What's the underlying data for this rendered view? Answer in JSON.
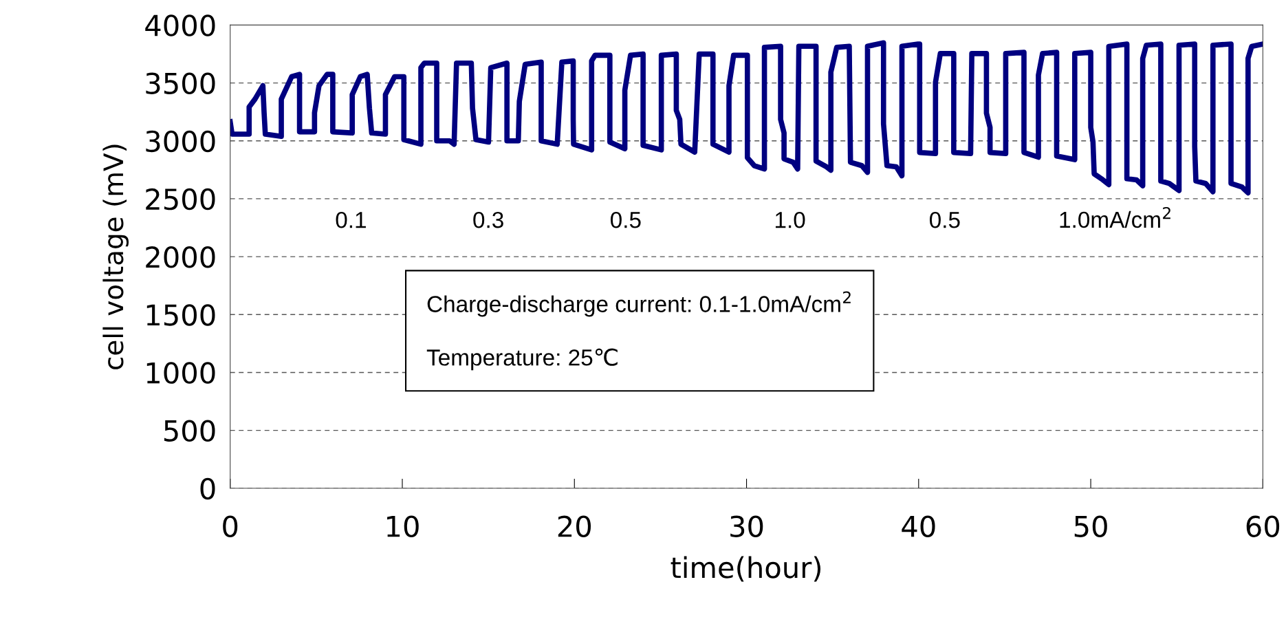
{
  "chart_data": {
    "type": "line",
    "xlabel": "time(hour)",
    "ylabel": "cell voltage (mV)",
    "xlim": [
      0,
      60
    ],
    "xticks": [
      0,
      10,
      20,
      30,
      40,
      50,
      60
    ],
    "ylim": [
      0,
      4000
    ],
    "yticks": [
      0,
      500,
      1000,
      1500,
      2000,
      2500,
      3000,
      3500,
      4000
    ],
    "grid": "y",
    "line_style": "solid",
    "marker": "none",
    "series": [
      {
        "color": "#000080",
        "x": [
          0,
          0.11,
          1.1,
          1.1,
          1.44,
          1.9,
          1.97,
          2.04,
          2.97,
          2.97,
          3.57,
          4.03,
          4.03,
          4.9,
          4.9,
          5.16,
          5.63,
          5.96,
          5.96,
          7.09,
          7.09,
          7.56,
          7.96,
          8.09,
          8.22,
          9.02,
          9.02,
          9.55,
          10.09,
          10.09,
          11.08,
          11.08,
          11.28,
          12.0,
          12.0,
          12.75,
          13.01,
          13.15,
          14.01,
          14.08,
          14.28,
          15.01,
          15.14,
          16.08,
          16.08,
          16.74,
          16.8,
          17.14,
          18.07,
          18.07,
          19.0,
          19.27,
          19.93,
          19.93,
          19.95,
          21.0,
          21.0,
          21.2,
          22.06,
          22.06,
          22.93,
          22.93,
          23.26,
          23.99,
          23.99,
          25.05,
          25.05,
          25.92,
          25.92,
          26.12,
          26.19,
          26.99,
          27.25,
          28.05,
          28.05,
          28.98,
          28.98,
          29.25,
          30.05,
          30.05,
          30.45,
          31.04,
          31.04,
          31.98,
          31.98,
          32.18,
          32.18,
          32.71,
          32.97,
          33.04,
          34.04,
          34.04,
          34.64,
          34.9,
          34.9,
          35.24,
          35.97,
          36.04,
          36.7,
          37.03,
          37.03,
          37.96,
          37.96,
          38.16,
          38.7,
          39.03,
          39.03,
          39.96,
          40.06,
          40.06,
          40.98,
          40.98,
          41.26,
          42.04,
          42.04,
          43.02,
          43.09,
          43.94,
          43.94,
          44.15,
          44.15,
          45.06,
          45.06,
          46.12,
          46.12,
          46.96,
          46.96,
          47.2,
          48.02,
          48.02,
          49.07,
          49.07,
          50.0,
          50.0,
          50.13,
          50.2,
          50.62,
          51.05,
          51.05,
          52.1,
          52.1,
          52.66,
          53.02,
          53.02,
          53.23,
          54.07,
          54.07,
          54.56,
          55.13,
          55.13,
          56.04,
          56.04,
          56.11,
          56.68,
          57.1,
          57.1,
          58.15,
          58.15,
          58.79,
          59.14,
          59.14,
          59.35,
          60.0
        ],
        "values": [
          3165,
          3058,
          3058,
          3292,
          3360,
          3476,
          3243,
          3058,
          3039,
          3360,
          3554,
          3574,
          3078,
          3078,
          3243,
          3476,
          3574,
          3574,
          3078,
          3068,
          3399,
          3554,
          3574,
          3282,
          3068,
          3058,
          3399,
          3554,
          3554,
          3010,
          2971,
          3632,
          3671,
          3671,
          3000,
          3000,
          2971,
          3671,
          3671,
          3282,
          3010,
          2990,
          3632,
          3671,
          3000,
          3000,
          3341,
          3661,
          3680,
          3000,
          2971,
          3680,
          3690,
          3185,
          2971,
          2922,
          3690,
          3739,
          3739,
          2990,
          2932,
          3438,
          3739,
          3749,
          2961,
          2922,
          3739,
          3749,
          3263,
          3185,
          2971,
          2903,
          3749,
          3749,
          2971,
          2903,
          3476,
          3739,
          3739,
          2854,
          2786,
          2757,
          3807,
          3817,
          3185,
          3068,
          2844,
          2815,
          2757,
          3817,
          3817,
          2825,
          2776,
          2747,
          3593,
          3807,
          3817,
          2815,
          2786,
          2728,
          3817,
          3846,
          3146,
          2786,
          2776,
          2698,
          3817,
          3836,
          3836,
          2900,
          2890,
          3506,
          3754,
          3754,
          2900,
          2890,
          3754,
          3754,
          3239,
          3116,
          2900,
          2890,
          3754,
          3764,
          2900,
          2859,
          3568,
          3754,
          3764,
          2869,
          2838,
          3754,
          3764,
          3116,
          2992,
          2715,
          2673,
          2622,
          3815,
          3836,
          2673,
          2663,
          2612,
          3712,
          3826,
          3836,
          2653,
          2632,
          2571,
          3826,
          3836,
          2951,
          2653,
          2632,
          2561,
          3826,
          3836,
          2632,
          2601,
          2551,
          3712,
          3815,
          3836
        ]
      }
    ],
    "annotations": [
      "0.1",
      "0.3",
      "0.5",
      "1.0",
      "0.5",
      "1.0mA/cm$^{2}$",
      "Charge-discharge current: 0.1-1.0mA/cm$^{2}$\n\nTemperature: 25℃"
    ]
  }
}
